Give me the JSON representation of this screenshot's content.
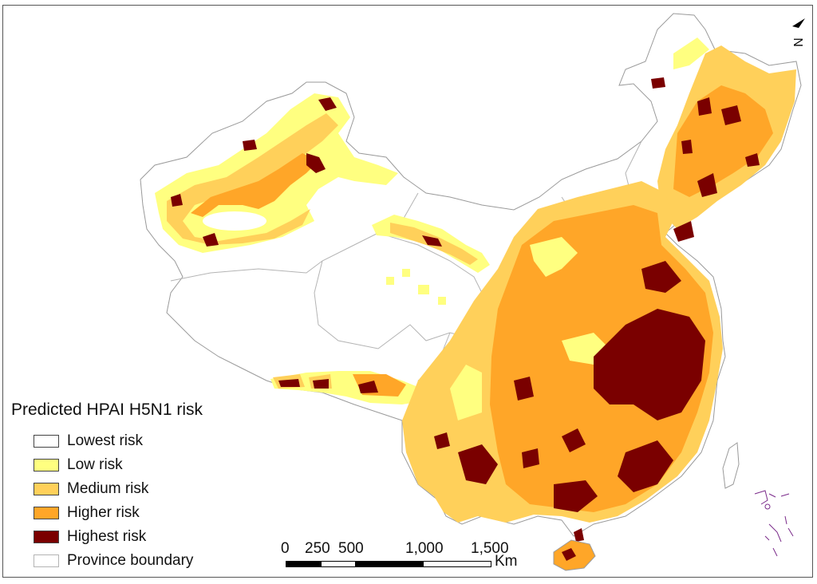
{
  "legend": {
    "title": "Predicted HPAI H5N1 risk",
    "items": [
      {
        "label": "Lowest risk",
        "color": "#ffffff"
      },
      {
        "label": "Low risk",
        "color": "#ffff80"
      },
      {
        "label": "Medium risk",
        "color": "#ffd05a"
      },
      {
        "label": "Higher risk",
        "color": "#ffa628"
      },
      {
        "label": "Highest risk",
        "color": "#7a0000"
      },
      {
        "label": "Province boundary",
        "color": "#ffffff"
      }
    ]
  },
  "scale_bar": {
    "ticks": [
      "0",
      "250",
      "500",
      "1,000",
      "1,500"
    ],
    "unit": "Km"
  },
  "north_arrow": {
    "symbol": "N",
    "icon": "north-arrow-icon"
  },
  "colors": {
    "lowest": "#ffffff",
    "low": "#ffff80",
    "medium": "#ffd05a",
    "higher": "#ffa628",
    "highest": "#7a0000",
    "boundary": "#b4b4b4",
    "island_outline": "#7a2a8a"
  }
}
